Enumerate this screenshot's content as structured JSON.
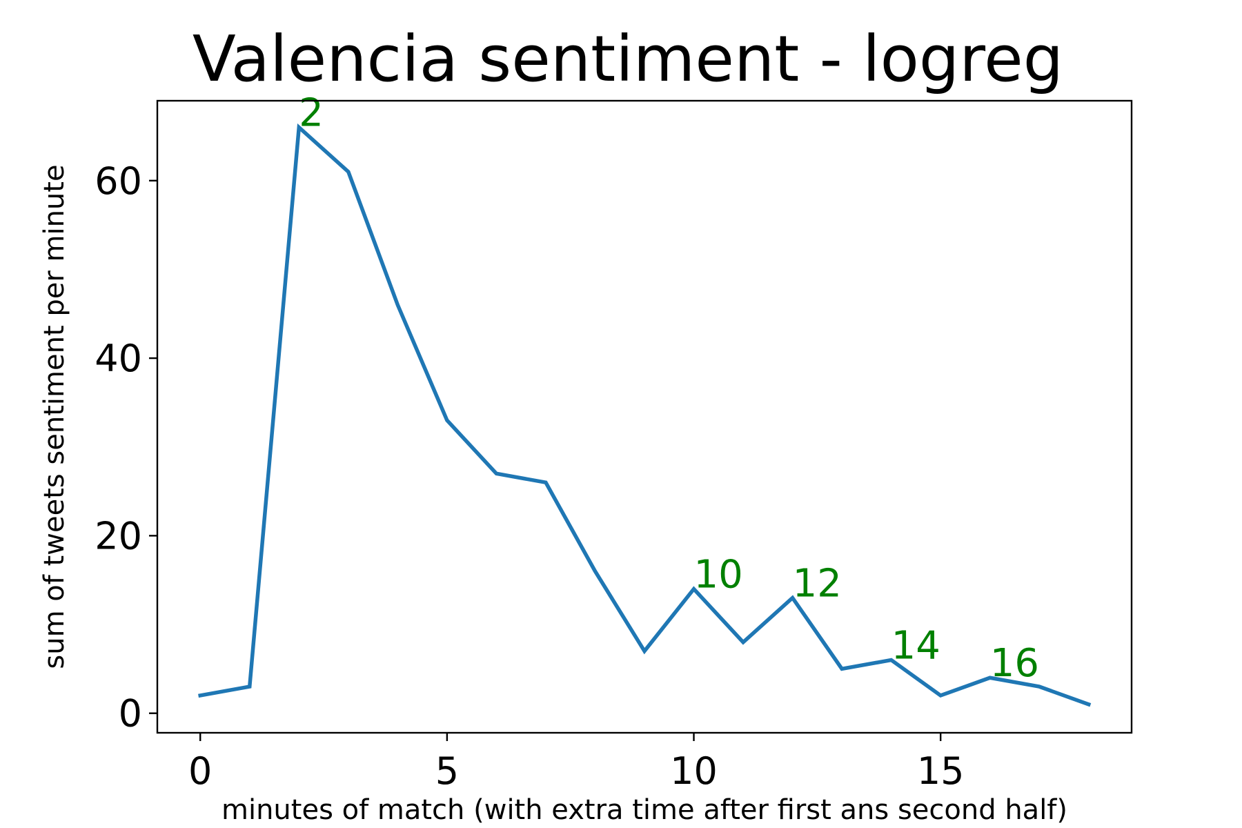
{
  "chart_data": {
    "type": "line",
    "title": "Valencia sentiment - logreg",
    "xlabel": "minutes of match (with extra time after first ans second half)",
    "ylabel": "sum of tweets sentiment per minute",
    "xlim": [
      -0.87,
      18.87
    ],
    "ylim": [
      -2.2,
      69.0
    ],
    "xticks": [
      0,
      5,
      10,
      15
    ],
    "yticks": [
      0,
      20,
      40,
      60
    ],
    "grid": false,
    "line_color": "#1f77b4",
    "annotation_color": "#008000",
    "series": [
      {
        "x": [
          0,
          1,
          2,
          3,
          4,
          5,
          6,
          7,
          8,
          9,
          10,
          11,
          12,
          13,
          14,
          15,
          16,
          17,
          18
        ],
        "values": [
          2,
          3,
          66,
          61,
          46,
          33,
          27,
          26,
          16,
          7,
          14,
          8,
          13,
          5,
          6,
          2,
          4,
          3,
          1
        ]
      }
    ],
    "annotations": [
      {
        "x": 2,
        "y": 66,
        "text": "2"
      },
      {
        "x": 10,
        "y": 14,
        "text": "10"
      },
      {
        "x": 12,
        "y": 13,
        "text": "12"
      },
      {
        "x": 14,
        "y": 6,
        "text": "14"
      },
      {
        "x": 16,
        "y": 4,
        "text": "16"
      }
    ]
  }
}
